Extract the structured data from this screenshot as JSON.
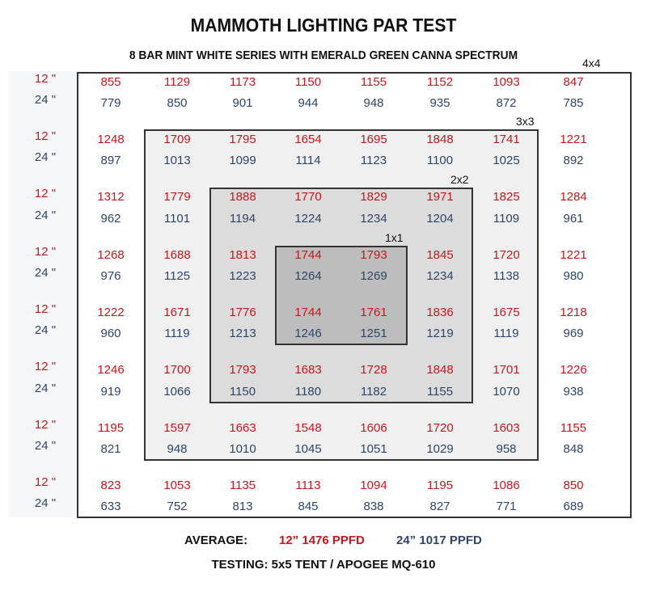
{
  "header": {
    "title": "MAMMOTH LIGHTING PAR TEST",
    "subtitle": "8 BAR MINT WHITE SERIES WITH EMERALD GREEN CANNA SPECTRUM"
  },
  "boxes": {
    "b4": "4x4",
    "b3": "3x3",
    "b2": "2x2",
    "b1": "1x1"
  },
  "row_labels": {
    "h12": "12 \"",
    "h24": "24 \""
  },
  "colors": {
    "h12": "#c8161d",
    "h24": "#2e4566",
    "frame": "#333333"
  },
  "footer": {
    "average_label": "AVERAGE:",
    "avg12": "12” 1476 PPFD",
    "avg24": "24” 1017 PPFD",
    "testing": "TESTING: 5x5 TENT / APOGEE MQ-610"
  },
  "chart_data": {
    "type": "table",
    "title": "MAMMOTH LIGHTING PAR TEST",
    "subtitle": "8 BAR MINT WHITE SERIES WITH EMERALD GREEN CANNA SPECTRUM",
    "unit": "PPFD",
    "grid": "8x8 measurement points, two heights per point",
    "regions": [
      "4x4",
      "3x3",
      "2x2",
      "1x1"
    ],
    "series": [
      {
        "name": "12\"",
        "values": [
          [
            "855",
            "1129",
            "1173",
            "1150",
            "1155",
            "1152",
            "1093",
            "847"
          ],
          [
            "1248",
            "1709",
            "1795",
            "1654",
            "1695",
            "1848",
            "1741",
            "1221"
          ],
          [
            "1312",
            "1779",
            "1888",
            "1770",
            "1829",
            "1971",
            "1825",
            "1284"
          ],
          [
            "1268",
            "1688",
            "1813",
            "1744",
            "1793",
            "1845",
            "1720",
            "1221"
          ],
          [
            "1222",
            "1671",
            "1776",
            "1744",
            "1761",
            "1836",
            "1675",
            "1218"
          ],
          [
            "1246",
            "1700",
            "1793",
            "1683",
            "1728",
            "1848",
            "1701",
            "1226"
          ],
          [
            "1195",
            "1597",
            "1663",
            "1548",
            "1606",
            "1720",
            "1603",
            "1155"
          ],
          [
            "823",
            "1053",
            "1135",
            "1113",
            "1094",
            "1195",
            "1086",
            "850"
          ]
        ],
        "average": 1476
      },
      {
        "name": "24\"",
        "values": [
          [
            "779",
            "850",
            "901",
            "944",
            "948",
            "935",
            "872",
            "785"
          ],
          [
            "897",
            "1013",
            "1099",
            "1114",
            "1123",
            "1100",
            "1025",
            "892"
          ],
          [
            "962",
            "1101",
            "1194",
            "1224",
            "1234",
            "1204",
            "1109",
            "961"
          ],
          [
            "976",
            "1125",
            "1223",
            "1264",
            "1269",
            "1234",
            "1138",
            "980"
          ],
          [
            "960",
            "1119",
            "1213",
            "1246",
            "1251",
            "1219",
            "1119",
            "969"
          ],
          [
            "919",
            "1066",
            "1150",
            "1180",
            "1182",
            "1155",
            "1070",
            "938"
          ],
          [
            "821",
            "948",
            "1010",
            "1045",
            "1051",
            "1029",
            "958",
            "848"
          ],
          [
            "633",
            "752",
            "813",
            "845",
            "838",
            "827",
            "771",
            "689"
          ]
        ],
        "average": 1017
      }
    ],
    "testing": "5x5 TENT / APOGEE MQ-610"
  }
}
